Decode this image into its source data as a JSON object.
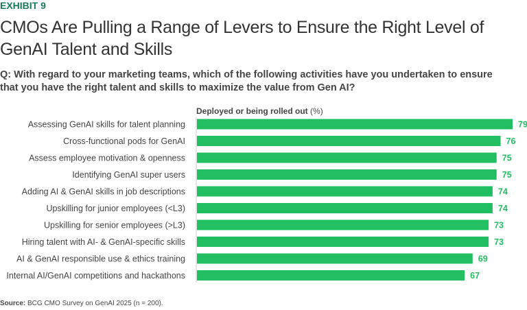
{
  "exhibit": "EXHIBIT 9",
  "title": "CMOs Are Pulling a Range of Levers to Ensure the Right Level of GenAI Talent and Skills",
  "question": "Q: With regard to your marketing teams, which of the following activities have you undertaken to ensure that you have the right talent and skills to maximize the value from Gen AI?",
  "source_label": "Source:",
  "source_text": "BCG CMO Survey on GenAI 2025 (n = 200).",
  "chart_data": {
    "type": "bar",
    "orientation": "horizontal",
    "series_label": "Deployed or being rolled out",
    "series_unit": "(%)",
    "bar_color": "#21bf61",
    "label_color": "#21bf61",
    "xlim": [
      0,
      79
    ],
    "grid": false,
    "categories": [
      "Assessing GenAI skills for talent planning",
      "Cross-functional pods for GenAI",
      "Assess employee motivation & openness",
      "Identifying GenAI super users",
      "Adding AI & GenAI skills in job descriptions",
      "Upskilling for junior employees (<L3)",
      "Upskilling for senior employees (>L3)",
      "Hiring talent with AI- & GenAI-specific skills",
      "AI & GenAI responsible use & ethics training",
      "Internal AI/GenAI competitions and hackathons"
    ],
    "values": [
      79,
      76,
      75,
      75,
      74,
      74,
      73,
      73,
      69,
      67
    ]
  }
}
